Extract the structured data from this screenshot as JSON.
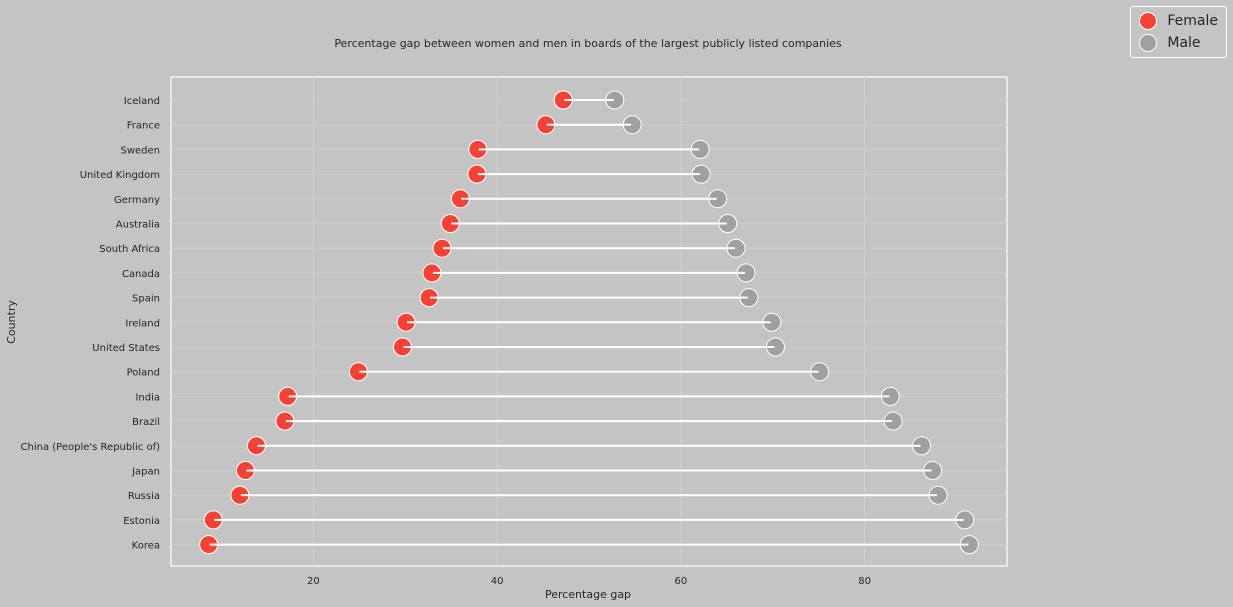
{
  "chart_data": {
    "type": "dumbbell",
    "title": "Percentage gap between women and men in boards of the largest publicly listed companies",
    "xlabel": "Percentage gap",
    "ylabel": "Country",
    "xlim": [
      4.5,
      95.5
    ],
    "xticks": [
      20,
      40,
      60,
      80
    ],
    "grid": true,
    "legend_position": "top-right",
    "categories": [
      "Iceland",
      "France",
      "Sweden",
      "United Kingdom",
      "Germany",
      "Australia",
      "South Africa",
      "Canada",
      "Spain",
      "Ireland",
      "United States",
      "Poland",
      "India",
      "Brazil",
      "China (People's Republic of)",
      "Japan",
      "Russia",
      "Estonia",
      "Korea"
    ],
    "series": [
      {
        "name": "Female",
        "color": "#f44336",
        "values": [
          47.2,
          45.3,
          37.9,
          37.8,
          36.0,
          34.9,
          34.0,
          32.9,
          32.6,
          30.1,
          29.7,
          24.9,
          17.2,
          16.9,
          13.8,
          12.6,
          12.0,
          9.1,
          8.6
        ]
      },
      {
        "name": "Male",
        "color": "#a0a0a0",
        "values": [
          52.8,
          54.7,
          62.1,
          62.2,
          64.0,
          65.1,
          66.0,
          67.1,
          67.4,
          69.9,
          70.3,
          75.1,
          82.8,
          83.1,
          86.2,
          87.4,
          88.0,
          90.9,
          91.4
        ]
      }
    ]
  }
}
